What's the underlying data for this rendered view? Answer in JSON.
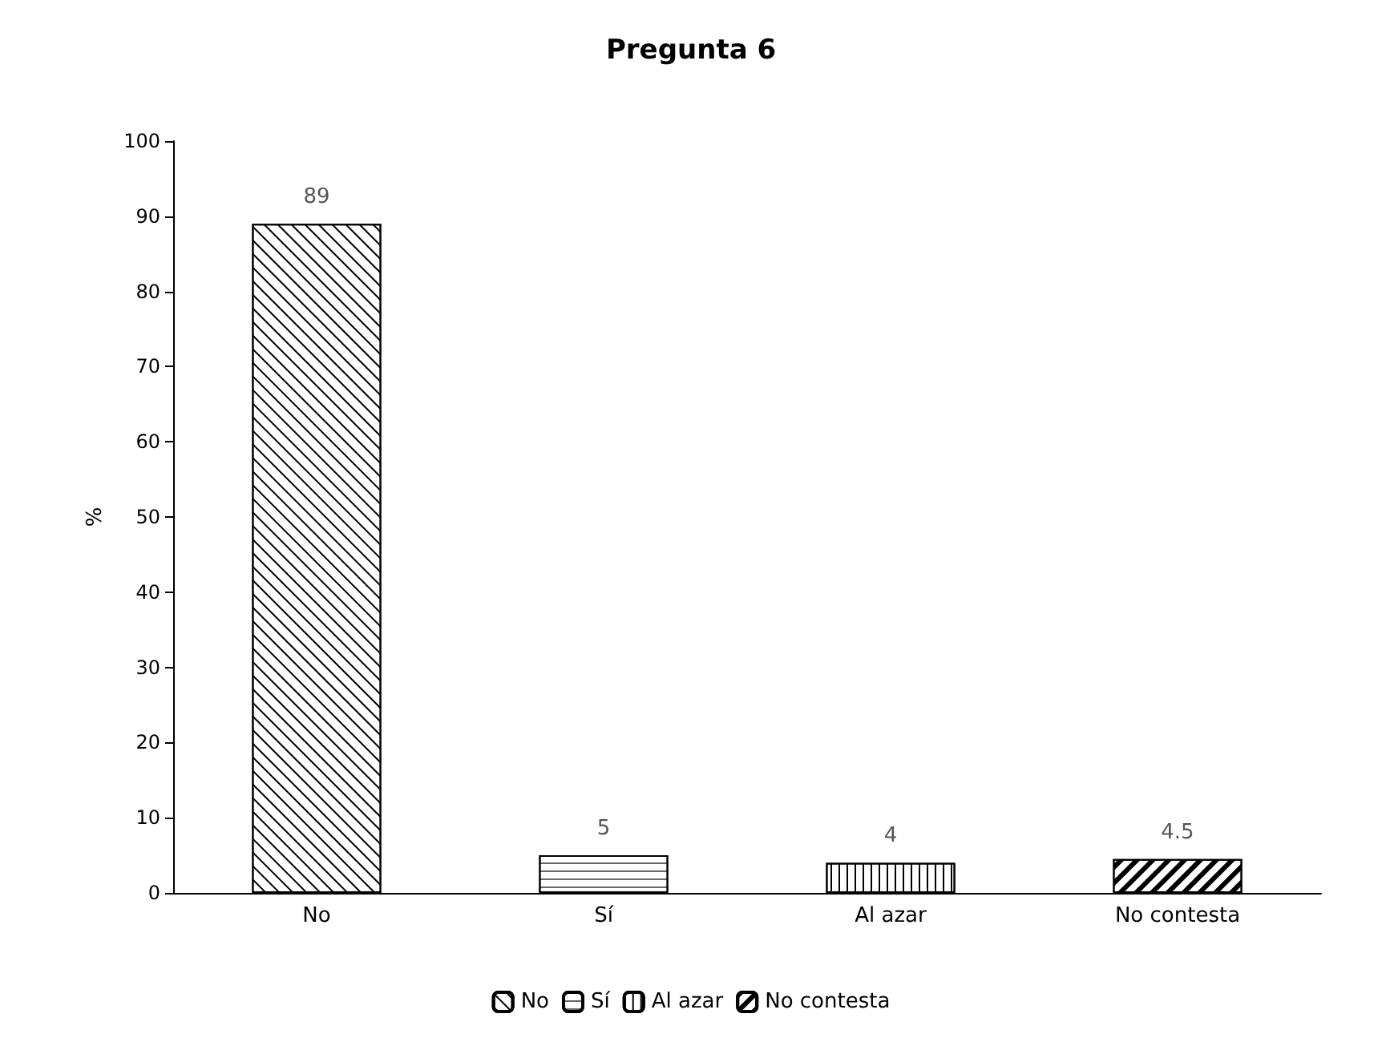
{
  "chart_data": {
    "type": "bar",
    "title": "Pregunta 6",
    "ylabel": "%",
    "categories": [
      "No",
      "Sí",
      "Al azar",
      "No contesta"
    ],
    "series": [
      {
        "name": "No",
        "color": "#ffffff",
        "values": [
          89,
          null,
          null,
          null
        ]
      },
      {
        "name": "Sí",
        "color": "#ffffff",
        "values": [
          null,
          5,
          null,
          null
        ]
      },
      {
        "name": "Al azar",
        "color": "#ffffff",
        "values": [
          null,
          null,
          4,
          null
        ]
      },
      {
        "name": "No contesta",
        "color": "#ffffff",
        "values": [
          null,
          null,
          null,
          4.5
        ]
      }
    ],
    "stacked": true,
    "data_labels": true,
    "ylim": [
      0,
      100
    ],
    "yticks": [
      0,
      10,
      20,
      30,
      40,
      50,
      60,
      70,
      80,
      90,
      100
    ],
    "grid": false,
    "legend": "bottom"
  }
}
